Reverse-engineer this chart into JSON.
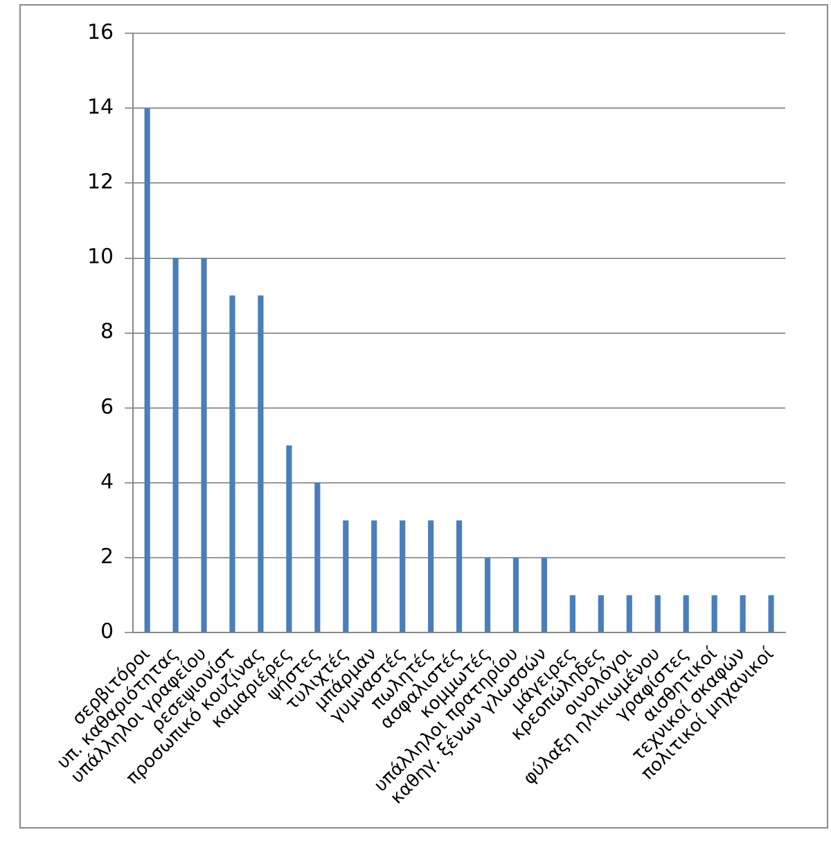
{
  "chart_data": {
    "type": "bar",
    "categories": [
      "σερβιτόροι",
      "υπ. καθαριότητας",
      "υπάλληλοι γραφείου",
      "ρεσεψιονίστ",
      "προσωπικό κουζίνας",
      "καμαριέρες",
      "ψήστες",
      "τυλιχτές",
      "μπάρμαν",
      "γυμναστές",
      "πωλητές",
      "ασφαλιστές",
      "κομμωτές",
      "υπάλληλοι πρατηρίου",
      "καθηγ. ξένων γλωσσών",
      "μάγειρες",
      "κρεοπώληδες",
      "οινολόγοι",
      "φύλαξη ηλικιωμένου",
      "γραφίστες",
      "αισθητικοί",
      "τεχνικοί σκαφών",
      "πολιτικοί μηχανικοί"
    ],
    "values": [
      14,
      10,
      10,
      9,
      9,
      5,
      4,
      3,
      3,
      3,
      3,
      3,
      2,
      2,
      2,
      1,
      1,
      1,
      1,
      1,
      1,
      1,
      1
    ],
    "color": "#4a7ebb",
    "ylim": [
      0,
      16
    ],
    "yticks": [
      0,
      2,
      4,
      6,
      8,
      10,
      12,
      14,
      16
    ],
    "grid": "y",
    "legend": false
  }
}
